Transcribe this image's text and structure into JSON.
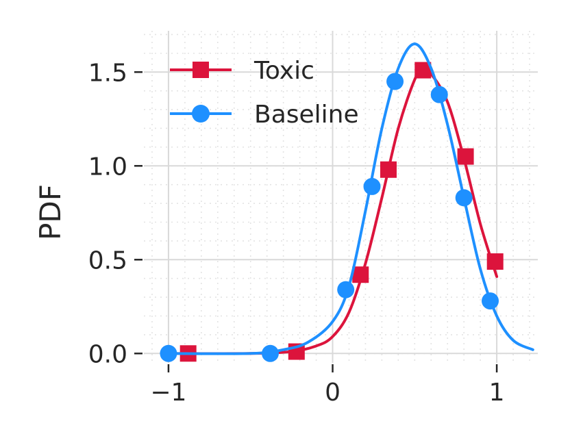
{
  "chart_data": {
    "type": "line",
    "title": "",
    "xlabel": "",
    "ylabel": "PDF",
    "xlim": [
      -1.15,
      1.25
    ],
    "ylim": [
      -0.05,
      1.72
    ],
    "x_ticks": [
      -1,
      0,
      1
    ],
    "x_tick_labels": [
      "−1",
      "0",
      "1"
    ],
    "y_ticks": [
      0.0,
      0.5,
      1.0,
      1.5
    ],
    "y_tick_labels": [
      "0.0",
      "0.5",
      "1.0",
      "1.5"
    ],
    "grid": true,
    "minor_grid": true,
    "legend": {
      "position": "top-left",
      "entries": [
        "Toxic",
        "Baseline"
      ]
    },
    "series": [
      {
        "name": "Toxic",
        "color": "#dc143c",
        "marker": "square",
        "curve": {
          "x": [
            -1.0,
            -0.5,
            -0.25,
            -0.1,
            0.0,
            0.1,
            0.2,
            0.3,
            0.4,
            0.5,
            0.55,
            0.6,
            0.7,
            0.8,
            0.9,
            1.0
          ],
          "y": [
            0.0,
            0.0,
            0.01,
            0.04,
            0.09,
            0.22,
            0.48,
            0.83,
            1.2,
            1.46,
            1.51,
            1.49,
            1.34,
            1.04,
            0.69,
            0.41
          ]
        },
        "markers": {
          "x": [
            -0.88,
            -0.22,
            0.17,
            0.34,
            0.55,
            0.81,
            0.99
          ],
          "y": [
            0.0,
            0.01,
            0.42,
            0.98,
            1.51,
            1.05,
            0.49
          ]
        }
      },
      {
        "name": "Baseline",
        "color": "#1e90ff",
        "marker": "circle",
        "curve": {
          "x": [
            -1.0,
            -0.5,
            -0.3,
            -0.15,
            0.0,
            0.1,
            0.2,
            0.3,
            0.4,
            0.5,
            0.6,
            0.7,
            0.8,
            0.9,
            1.0,
            1.1,
            1.22
          ],
          "y": [
            0.0,
            0.0,
            0.02,
            0.06,
            0.17,
            0.36,
            0.76,
            1.2,
            1.52,
            1.65,
            1.52,
            1.22,
            0.83,
            0.45,
            0.2,
            0.07,
            0.02
          ]
        },
        "markers": {
          "x": [
            -1.0,
            -0.38,
            0.08,
            0.24,
            0.38,
            0.65,
            0.8,
            0.96
          ],
          "y": [
            0.0,
            0.0,
            0.34,
            0.89,
            1.45,
            1.38,
            0.83,
            0.28
          ]
        }
      }
    ]
  }
}
